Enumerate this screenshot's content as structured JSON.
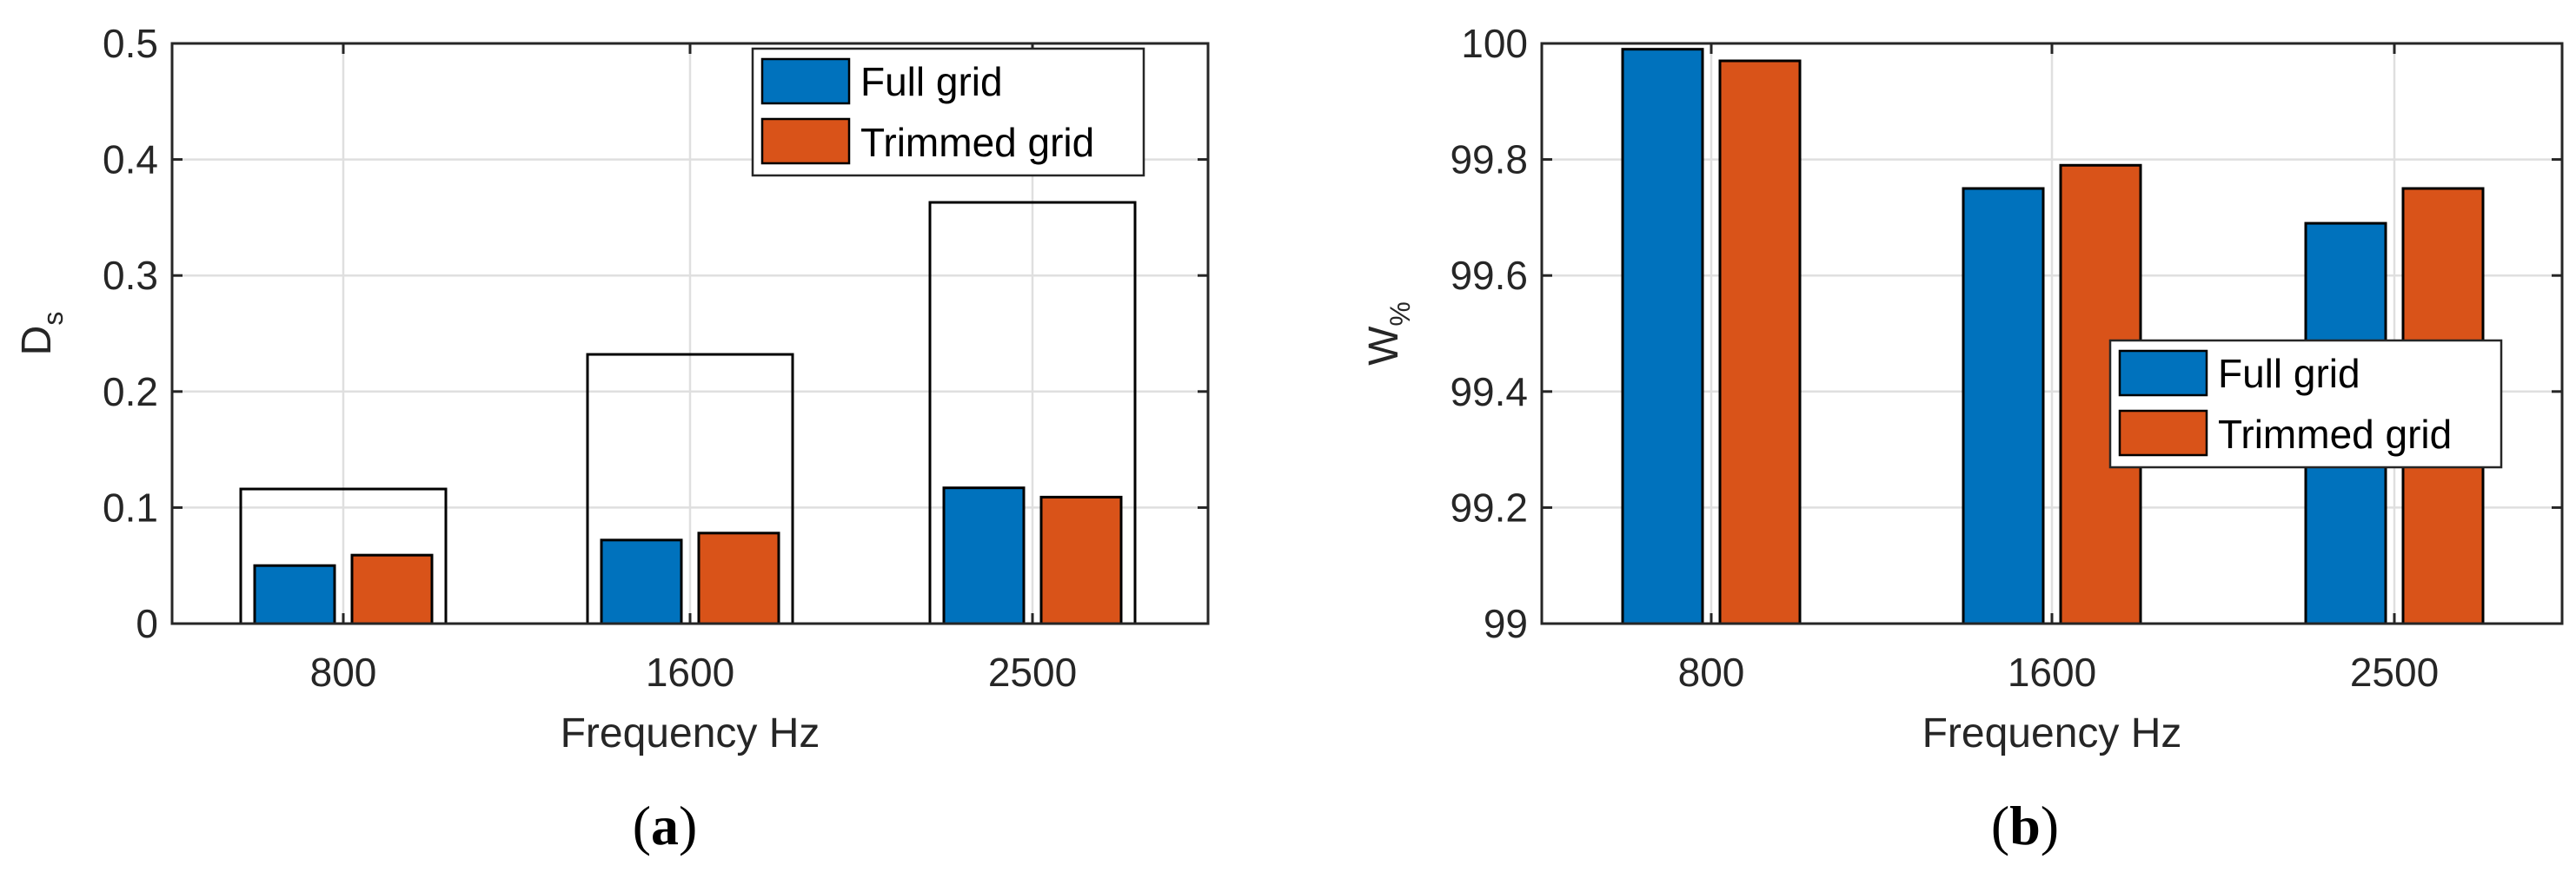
{
  "colors": {
    "series1": "#0072BD",
    "series2": "#D95319"
  },
  "chart_data": [
    {
      "id": "a",
      "caption_letter": "a",
      "type": "bar",
      "xlabel": "Frequency Hz",
      "ylabel_main": "D",
      "ylabel_sub": "s",
      "categories": [
        "800",
        "1600",
        "2500"
      ],
      "ylim": [
        0,
        0.5
      ],
      "yticks": [
        "0",
        "0.1",
        "0.2",
        "0.3",
        "0.4",
        "0.5"
      ],
      "grid": true,
      "legend_position": "top-right",
      "series": [
        {
          "name": "Full grid",
          "values": [
            0.05,
            0.072,
            0.117
          ]
        },
        {
          "name": "Trimmed grid",
          "values": [
            0.059,
            0.078,
            0.109
          ]
        }
      ],
      "outline_boxes": [
        0.116,
        0.232,
        0.363
      ]
    },
    {
      "id": "b",
      "caption_letter": "b",
      "type": "bar",
      "xlabel": "Frequency Hz",
      "ylabel_main": "W",
      "ylabel_sub": "%",
      "categories": [
        "800",
        "1600",
        "2500"
      ],
      "ylim": [
        99,
        100
      ],
      "yticks": [
        "99",
        "99.2",
        "99.4",
        "99.6",
        "99.8",
        "100"
      ],
      "grid": true,
      "legend_position": "middle-right",
      "series": [
        {
          "name": "Full grid",
          "values": [
            99.99,
            99.75,
            99.69
          ]
        },
        {
          "name": "Trimmed grid",
          "values": [
            99.97,
            99.79,
            99.75
          ]
        }
      ]
    }
  ]
}
